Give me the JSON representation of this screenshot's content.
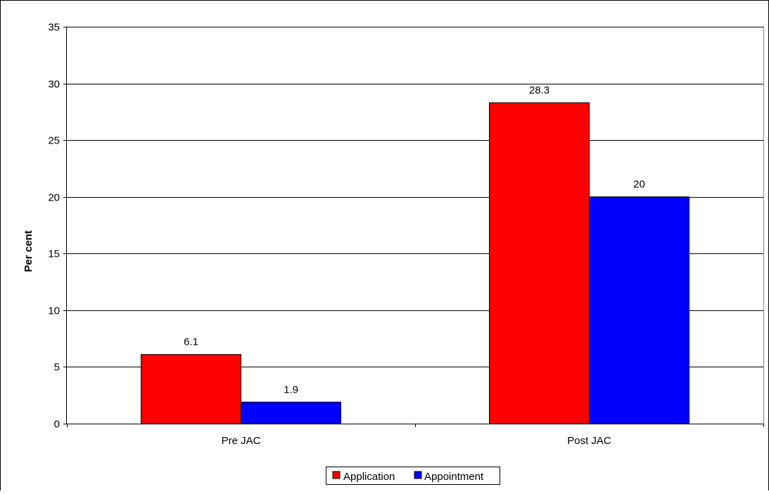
{
  "chart_data": {
    "type": "bar",
    "title": "",
    "xlabel": "",
    "ylabel": "Per cent",
    "ylim": [
      0,
      35
    ],
    "yticks": [
      0,
      5,
      10,
      15,
      20,
      25,
      30,
      35
    ],
    "categories": [
      "Pre JAC",
      "Post JAC"
    ],
    "series": [
      {
        "name": "Application",
        "values": [
          6.1,
          28.3
        ],
        "value_labels": [
          "6.1",
          "28.3"
        ],
        "color": "#ff0000"
      },
      {
        "name": "Appointment",
        "values": [
          1.9,
          20
        ],
        "value_labels": [
          "1.9",
          "20"
        ],
        "color": "#0000ff"
      }
    ],
    "grid": true,
    "legend_position": "bottom"
  }
}
